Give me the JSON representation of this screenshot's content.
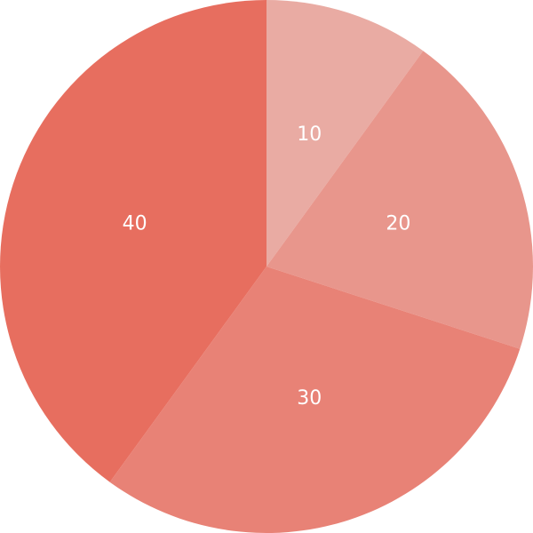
{
  "chart_data": {
    "type": "pie",
    "start_angle_deg": 0,
    "direction": "clockwise",
    "slices": [
      {
        "label": "10",
        "value": 10,
        "color": "#E9ABA3"
      },
      {
        "label": "20",
        "value": 20,
        "color": "#E8968C"
      },
      {
        "label": "30",
        "value": 30,
        "color": "#E88276"
      },
      {
        "label": "40",
        "value": 40,
        "color": "#E76E5F"
      }
    ]
  }
}
